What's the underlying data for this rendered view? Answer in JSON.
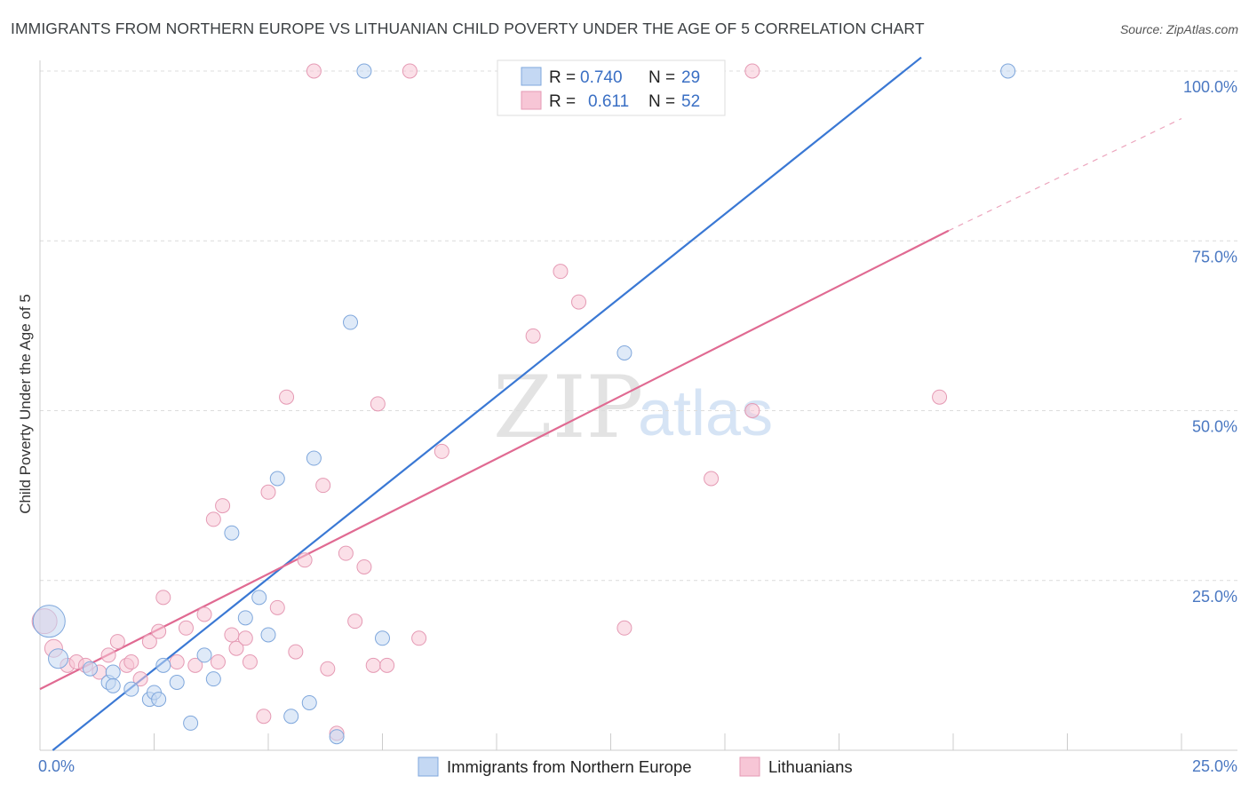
{
  "title": "IMMIGRANTS FROM NORTHERN EUROPE VS LITHUANIAN CHILD POVERTY UNDER THE AGE OF 5 CORRELATION CHART",
  "source": "Source: ZipAtlas.com",
  "watermark": {
    "zip": "ZIP",
    "atlas": "atlas"
  },
  "colors": {
    "blue": "#3a78d4",
    "pink": "#e06a92",
    "blue_fill": "#c4d8f3",
    "pink_fill": "#f7c6d6"
  },
  "legend": {
    "r_label": "R =",
    "n_label": "N =",
    "blue": {
      "r": "0.740",
      "n": "29"
    },
    "pink": {
      "r": "0.611",
      "n": "52"
    }
  },
  "chart_data": {
    "type": "scatter",
    "title": "IMMIGRANTS FROM NORTHERN EUROPE VS LITHUANIAN CHILD POVERTY UNDER THE AGE OF 5 CORRELATION CHART",
    "xlabel": "",
    "ylabel": "Child Poverty Under the Age of 5",
    "xlim": [
      0,
      25
    ],
    "ylim": [
      0,
      100
    ],
    "x_tick_labels": [
      "0.0%",
      "25.0%"
    ],
    "y_tick_labels": [
      "100.0%",
      "75.0%",
      "50.0%",
      "25.0%"
    ],
    "series": [
      {
        "name": "Immigrants from Northern Europe",
        "color": "#3a78d4",
        "regression": {
          "x": [
            0,
            19.3
          ],
          "y": [
            -1.5,
            102
          ]
        },
        "points": [
          [
            0.2,
            19,
            18
          ],
          [
            0.4,
            13.5,
            11
          ],
          [
            1.1,
            12,
            8
          ],
          [
            1.5,
            10,
            8
          ],
          [
            1.6,
            11.5,
            8
          ],
          [
            1.6,
            9.5,
            8
          ],
          [
            2.0,
            9,
            8
          ],
          [
            2.4,
            7.5,
            8
          ],
          [
            2.5,
            8.5,
            8
          ],
          [
            2.6,
            7.5,
            8
          ],
          [
            2.7,
            12.5,
            8
          ],
          [
            3.0,
            10,
            8
          ],
          [
            3.3,
            4,
            8
          ],
          [
            3.6,
            14,
            8
          ],
          [
            3.8,
            10.5,
            8
          ],
          [
            4.2,
            32,
            8
          ],
          [
            4.5,
            19.5,
            8
          ],
          [
            4.8,
            22.5,
            8
          ],
          [
            5.0,
            17,
            8
          ],
          [
            5.2,
            40,
            8
          ],
          [
            5.5,
            5,
            8
          ],
          [
            5.9,
            7,
            8
          ],
          [
            6.0,
            43,
            8
          ],
          [
            6.5,
            2,
            8
          ],
          [
            6.8,
            63,
            8
          ],
          [
            7.1,
            100,
            8
          ],
          [
            7.5,
            16.5,
            8
          ],
          [
            12.8,
            58.5,
            8
          ],
          [
            21.2,
            100,
            8
          ]
        ]
      },
      {
        "name": "Lithuanians",
        "color": "#e06a92",
        "regression": {
          "x": [
            0,
            19.9
          ],
          "y": [
            9,
            76.5
          ]
        },
        "regression_ext": {
          "x": [
            19.9,
            25
          ],
          "y": [
            76.5,
            93
          ]
        },
        "points": [
          [
            0.1,
            19,
            14
          ],
          [
            0.3,
            15,
            10
          ],
          [
            0.6,
            12.5,
            8
          ],
          [
            0.8,
            13,
            8
          ],
          [
            1.0,
            12.5,
            8
          ],
          [
            1.3,
            11.5,
            8
          ],
          [
            1.5,
            14,
            8
          ],
          [
            1.7,
            16,
            8
          ],
          [
            1.9,
            12.5,
            8
          ],
          [
            2.0,
            13,
            8
          ],
          [
            2.2,
            10.5,
            8
          ],
          [
            2.4,
            16,
            8
          ],
          [
            2.6,
            17.5,
            8
          ],
          [
            2.7,
            22.5,
            8
          ],
          [
            3.0,
            13,
            8
          ],
          [
            3.2,
            18,
            8
          ],
          [
            3.4,
            12.5,
            8
          ],
          [
            3.6,
            20,
            8
          ],
          [
            3.8,
            34,
            8
          ],
          [
            3.9,
            13,
            8
          ],
          [
            4.0,
            36,
            8
          ],
          [
            4.2,
            17,
            8
          ],
          [
            4.3,
            15,
            8
          ],
          [
            4.5,
            16.5,
            8
          ],
          [
            4.6,
            13,
            8
          ],
          [
            4.9,
            5,
            8
          ],
          [
            5.0,
            38,
            8
          ],
          [
            5.2,
            21,
            8
          ],
          [
            5.4,
            52,
            8
          ],
          [
            5.6,
            14.5,
            8
          ],
          [
            5.8,
            28,
            8
          ],
          [
            6.0,
            100,
            8
          ],
          [
            6.2,
            39,
            8
          ],
          [
            6.3,
            12,
            8
          ],
          [
            6.5,
            2.5,
            8
          ],
          [
            6.7,
            29,
            8
          ],
          [
            6.9,
            19,
            8
          ],
          [
            7.1,
            27,
            8
          ],
          [
            7.3,
            12.5,
            8
          ],
          [
            7.4,
            51,
            8
          ],
          [
            7.6,
            12.5,
            8
          ],
          [
            8.1,
            100,
            8
          ],
          [
            8.3,
            16.5,
            8
          ],
          [
            8.8,
            44,
            8
          ],
          [
            10.8,
            61,
            8
          ],
          [
            11.4,
            70.5,
            8
          ],
          [
            11.8,
            66,
            8
          ],
          [
            12.8,
            18,
            8
          ],
          [
            14.7,
            40,
            8
          ],
          [
            15.6,
            50,
            8
          ],
          [
            15.6,
            100,
            8
          ],
          [
            19.7,
            52,
            8
          ]
        ]
      }
    ]
  },
  "bottom_legend": {
    "blue_label": "Immigrants from Northern Europe",
    "pink_label": "Lithuanians"
  }
}
